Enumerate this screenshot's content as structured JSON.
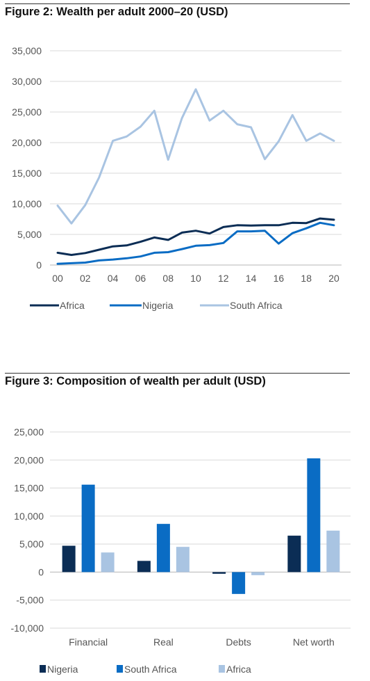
{
  "figures": [
    {
      "title": "Figure 2: Wealth per adult 2000–20 (USD)",
      "chart_data": {
        "type": "line",
        "x": [
          0,
          1,
          2,
          3,
          4,
          5,
          6,
          7,
          8,
          9,
          10,
          11,
          12,
          13,
          14,
          15,
          16,
          17,
          18,
          19,
          20
        ],
        "xtick_labels": [
          "00",
          "02",
          "04",
          "06",
          "08",
          "10",
          "12",
          "14",
          "16",
          "18",
          "20"
        ],
        "xticks": [
          0,
          2,
          4,
          6,
          8,
          10,
          12,
          14,
          16,
          18,
          20
        ],
        "ylim": [
          0,
          35000
        ],
        "yticks": [
          0,
          5000,
          10000,
          15000,
          20000,
          25000,
          30000,
          35000
        ],
        "ytick_labels": [
          "0",
          "5,000",
          "10,000",
          "15,000",
          "20,000",
          "25,000",
          "30,000",
          "35,000"
        ],
        "grid": true,
        "legend_position": "bottom",
        "series": [
          {
            "name": "Africa",
            "color": "#0b2d55",
            "values": [
              2000,
              1650,
              1950,
              2500,
              3050,
              3200,
              3800,
              4500,
              4100,
              5300,
              5600,
              5150,
              6200,
              6500,
              6450,
              6500,
              6500,
              6900,
              6850,
              7600,
              7400
            ]
          },
          {
            "name": "Nigeria",
            "color": "#0a6cc4",
            "values": [
              200,
              300,
              400,
              750,
              900,
              1100,
              1400,
              2000,
              2100,
              2600,
              3150,
              3250,
              3600,
              5500,
              5500,
              5600,
              3500,
              5200,
              6000,
              6900,
              6500
            ]
          },
          {
            "name": "South Africa",
            "color": "#a9c4e2",
            "values": [
              9700,
              6800,
              9800,
              14300,
              20300,
              21000,
              22600,
              25200,
              17200,
              24000,
              28700,
              23600,
              25200,
              23000,
              22500,
              17300,
              20200,
              24500,
              20300,
              21500,
              20300
            ]
          }
        ]
      }
    },
    {
      "title": "Figure 3: Composition of wealth per adult (USD)",
      "chart_data": {
        "type": "bar",
        "categories": [
          "Financial",
          "Real",
          "Debts",
          "Net worth"
        ],
        "ylim": [
          -10000,
          25000
        ],
        "yticks": [
          -10000,
          -5000,
          0,
          5000,
          10000,
          15000,
          20000,
          25000
        ],
        "ytick_labels": [
          "-10,000",
          "-5,000",
          "0",
          "5,000",
          "10,000",
          "15,000",
          "20,000",
          "25,000"
        ],
        "grid": true,
        "legend_position": "bottom",
        "series": [
          {
            "name": "Nigeria",
            "color": "#0b2d55",
            "values": [
              4700,
              2000,
              -300,
              6500
            ]
          },
          {
            "name": "South Africa",
            "color": "#0a6cc4",
            "values": [
              15600,
              8600,
              -3900,
              20300
            ]
          },
          {
            "name": "Africa",
            "color": "#a9c4e2",
            "values": [
              3500,
              4500,
              -550,
              7400
            ]
          }
        ]
      }
    }
  ]
}
